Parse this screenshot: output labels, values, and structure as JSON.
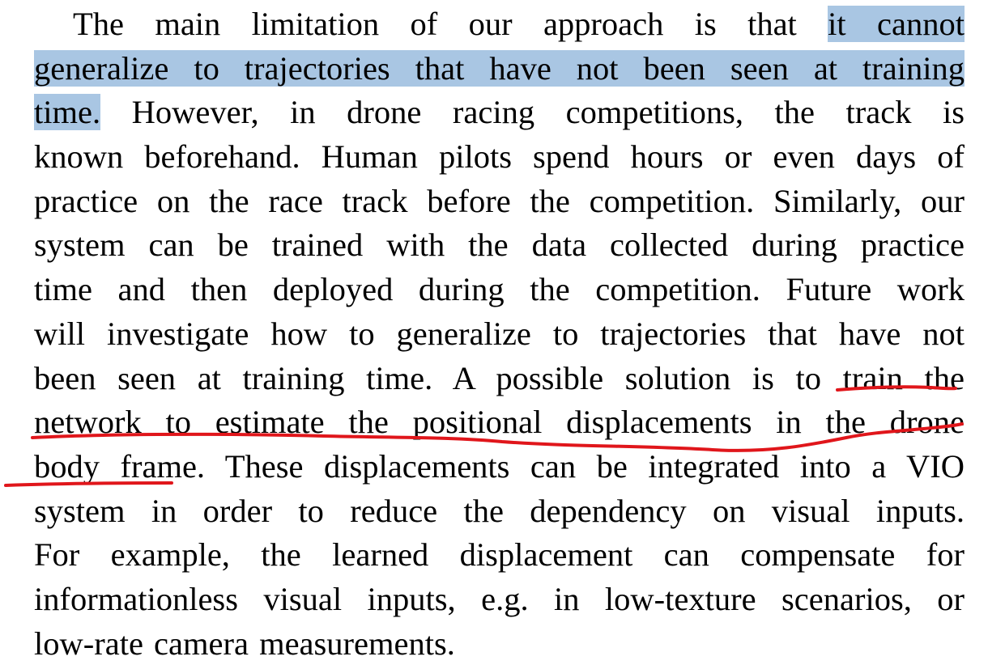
{
  "paragraph": {
    "lines": [
      {
        "before": "The main limitation of our approach is that ",
        "highlight": "it cannot",
        "after": ""
      },
      {
        "before": "",
        "highlight": "generalize to trajectories that have not been seen at training",
        "after": ""
      },
      {
        "before": "",
        "highlight": "time.",
        "after": " However, in drone racing competitions, the track is"
      },
      {
        "before": "known beforehand. Human pilots spend hours or even days of",
        "highlight": "",
        "after": ""
      },
      {
        "before": "practice on the race track before the competition. Similarly, our",
        "highlight": "",
        "after": ""
      },
      {
        "before": "system can be trained with the data collected during practice",
        "highlight": "",
        "after": ""
      },
      {
        "before": "time and then deployed during the competition. Future work",
        "highlight": "",
        "after": ""
      },
      {
        "before": "will investigate how to generalize to trajectories that have not",
        "highlight": "",
        "after": ""
      },
      {
        "before": "been seen at training time. A possible solution is to train the",
        "highlight": "",
        "after": ""
      },
      {
        "before": "network to estimate the positional displacements in the drone",
        "highlight": "",
        "after": ""
      },
      {
        "before": "body frame. These displacements can be integrated into a VIO",
        "highlight": "",
        "after": ""
      },
      {
        "before": "system in order to reduce the dependency on visual inputs.",
        "highlight": "",
        "after": ""
      },
      {
        "before": "For example, the learned displacement can compensate for",
        "highlight": "",
        "after": ""
      },
      {
        "before": "informationless visual inputs, e.g. in low-texture scenarios, or",
        "highlight": "",
        "after": ""
      },
      {
        "before": "low-rate camera measurements.",
        "highlight": "",
        "after": ""
      }
    ]
  },
  "colors": {
    "highlight": "#a9c6e3",
    "annotation_ink": "#e0161b",
    "text": "#000000",
    "background": "#ffffff"
  }
}
